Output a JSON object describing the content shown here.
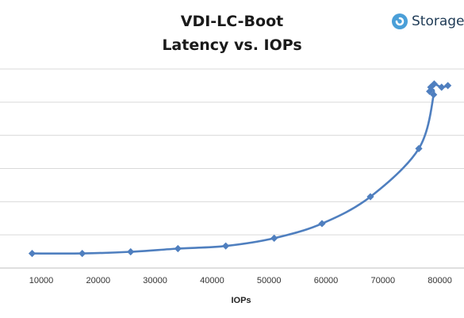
{
  "brand": {
    "name": "Storage",
    "accent": "#4a9fd8",
    "icon": "storage-logo-icon"
  },
  "chart_data": {
    "type": "line",
    "title": "VDI-LC-Boot",
    "subtitle": "Latency vs. IOPs",
    "xlabel": "IOPs",
    "ylabel": "",
    "xlim": [
      0,
      82000
    ],
    "ylim": [
      0,
      12
    ],
    "xticks": [
      "10000",
      "20000",
      "30000",
      "40000",
      "50000",
      "60000",
      "70000",
      "80000"
    ],
    "grid": {
      "horizontal": true,
      "vertical": false
    },
    "legend": "none",
    "series": [
      {
        "color": "#4f7fbf",
        "marker": "diamond",
        "points": [
          {
            "x": 8400,
            "y": 0.88
          },
          {
            "x": 17200,
            "y": 0.88
          },
          {
            "x": 25700,
            "y": 0.98
          },
          {
            "x": 34000,
            "y": 1.17
          },
          {
            "x": 42400,
            "y": 1.33
          },
          {
            "x": 50900,
            "y": 1.8
          },
          {
            "x": 59300,
            "y": 2.68
          },
          {
            "x": 67800,
            "y": 4.3
          },
          {
            "x": 76300,
            "y": 7.2
          },
          {
            "x": 78900,
            "y": 10.45
          },
          {
            "x": 78200,
            "y": 10.65
          },
          {
            "x": 78400,
            "y": 10.9
          },
          {
            "x": 79000,
            "y": 11.1
          },
          {
            "x": 80300,
            "y": 10.9
          },
          {
            "x": 81400,
            "y": 11.0
          }
        ]
      }
    ]
  }
}
